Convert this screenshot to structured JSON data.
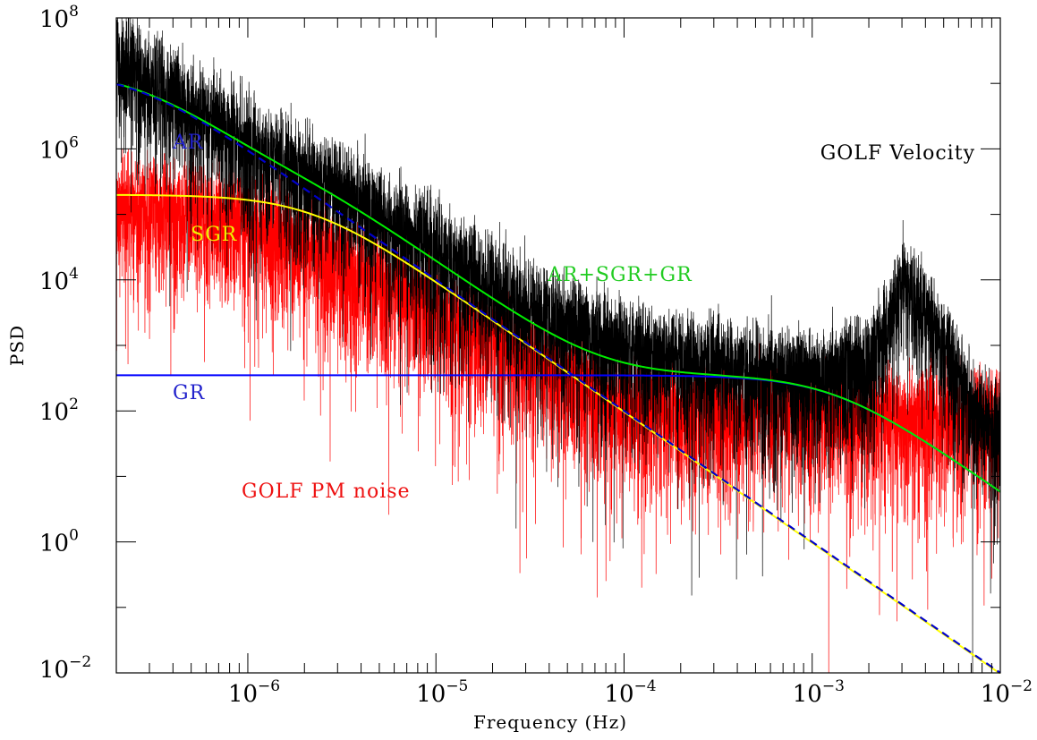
{
  "chart_data": {
    "type": "line",
    "title": "",
    "xlabel": "Frequency (Hz)",
    "ylabel": "PSD",
    "xscale": "log",
    "yscale": "log",
    "xlim": [
      2e-07,
      0.01
    ],
    "ylim": [
      0.01,
      100000000.0
    ],
    "grid": false,
    "legend": "none",
    "x_ticks": [
      {
        "base": "10",
        "exp": "−6",
        "value": 1e-06
      },
      {
        "base": "10",
        "exp": "−5",
        "value": 1e-05
      },
      {
        "base": "10",
        "exp": "−4",
        "value": 0.0001
      },
      {
        "base": "10",
        "exp": "−3",
        "value": 0.001
      },
      {
        "base": "10",
        "exp": "−2",
        "value": 0.01
      }
    ],
    "y_ticks": [
      {
        "base": "10",
        "exp": "−2",
        "value": 0.01
      },
      {
        "base": "10",
        "exp": "0",
        "value": 1
      },
      {
        "base": "10",
        "exp": "2",
        "value": 100.0
      },
      {
        "base": "10",
        "exp": "4",
        "value": 10000.0
      },
      {
        "base": "10",
        "exp": "6",
        "value": 1000000.0
      },
      {
        "base": "10",
        "exp": "8",
        "value": 100000000.0
      }
    ],
    "colors": {
      "golf_velocity": "#000000",
      "pm_noise": "#ff0000",
      "ar": "#0000cc",
      "sgr": "#ffff00",
      "gr": "#0000ff",
      "total": "#00ee00"
    },
    "model_components": {
      "AR": {
        "low_freq_level": 16000000.0,
        "knee_freq": 2.5e-07,
        "slope": -2
      },
      "SGR": {
        "low_freq_level": 200000.0,
        "knee_freq": 2.2e-06,
        "slope": -2
      },
      "GR": {
        "low_freq_level": 350,
        "knee_freq": 0.0013,
        "slope": -2
      }
    },
    "spectra_envelope": {
      "GOLF Velocity": {
        "x": [
          2e-07,
          5e-07,
          1e-06,
          3e-06,
          1e-05,
          3e-05,
          0.0001,
          0.0003,
          0.001,
          0.002,
          0.003,
          0.004,
          0.006,
          0.007,
          0.01
        ],
        "y": [
          30000000.0,
          6000000.0,
          1500000.0,
          300000.0,
          40000.0,
          5000.0,
          1200.0,
          700,
          400,
          700,
          10000.0,
          4000.0,
          500,
          150,
          80
        ]
      },
      "GOLF PM noise": {
        "x": [
          2e-07,
          5e-07,
          1e-06,
          3e-06,
          1e-05,
          3e-05,
          0.0001,
          0.001,
          0.01
        ],
        "y": [
          200000.0,
          150000.0,
          100000.0,
          30000.0,
          5000.0,
          800,
          150,
          120,
          100
        ]
      }
    },
    "series": [
      {
        "name": "GOLF Velocity",
        "type": "noisy-spectrum",
        "color": "#000000"
      },
      {
        "name": "GOLF PM noise",
        "type": "noisy-spectrum",
        "color": "#ff0000"
      },
      {
        "name": "AR",
        "type": "model",
        "color": "#0000cc",
        "dashed": true
      },
      {
        "name": "SGR",
        "type": "model",
        "color": "#ffff00"
      },
      {
        "name": "GR",
        "type": "model",
        "color": "#0000ff"
      },
      {
        "name": "AR+SGR+GR",
        "type": "model",
        "color": "#00ee00"
      }
    ]
  }
}
